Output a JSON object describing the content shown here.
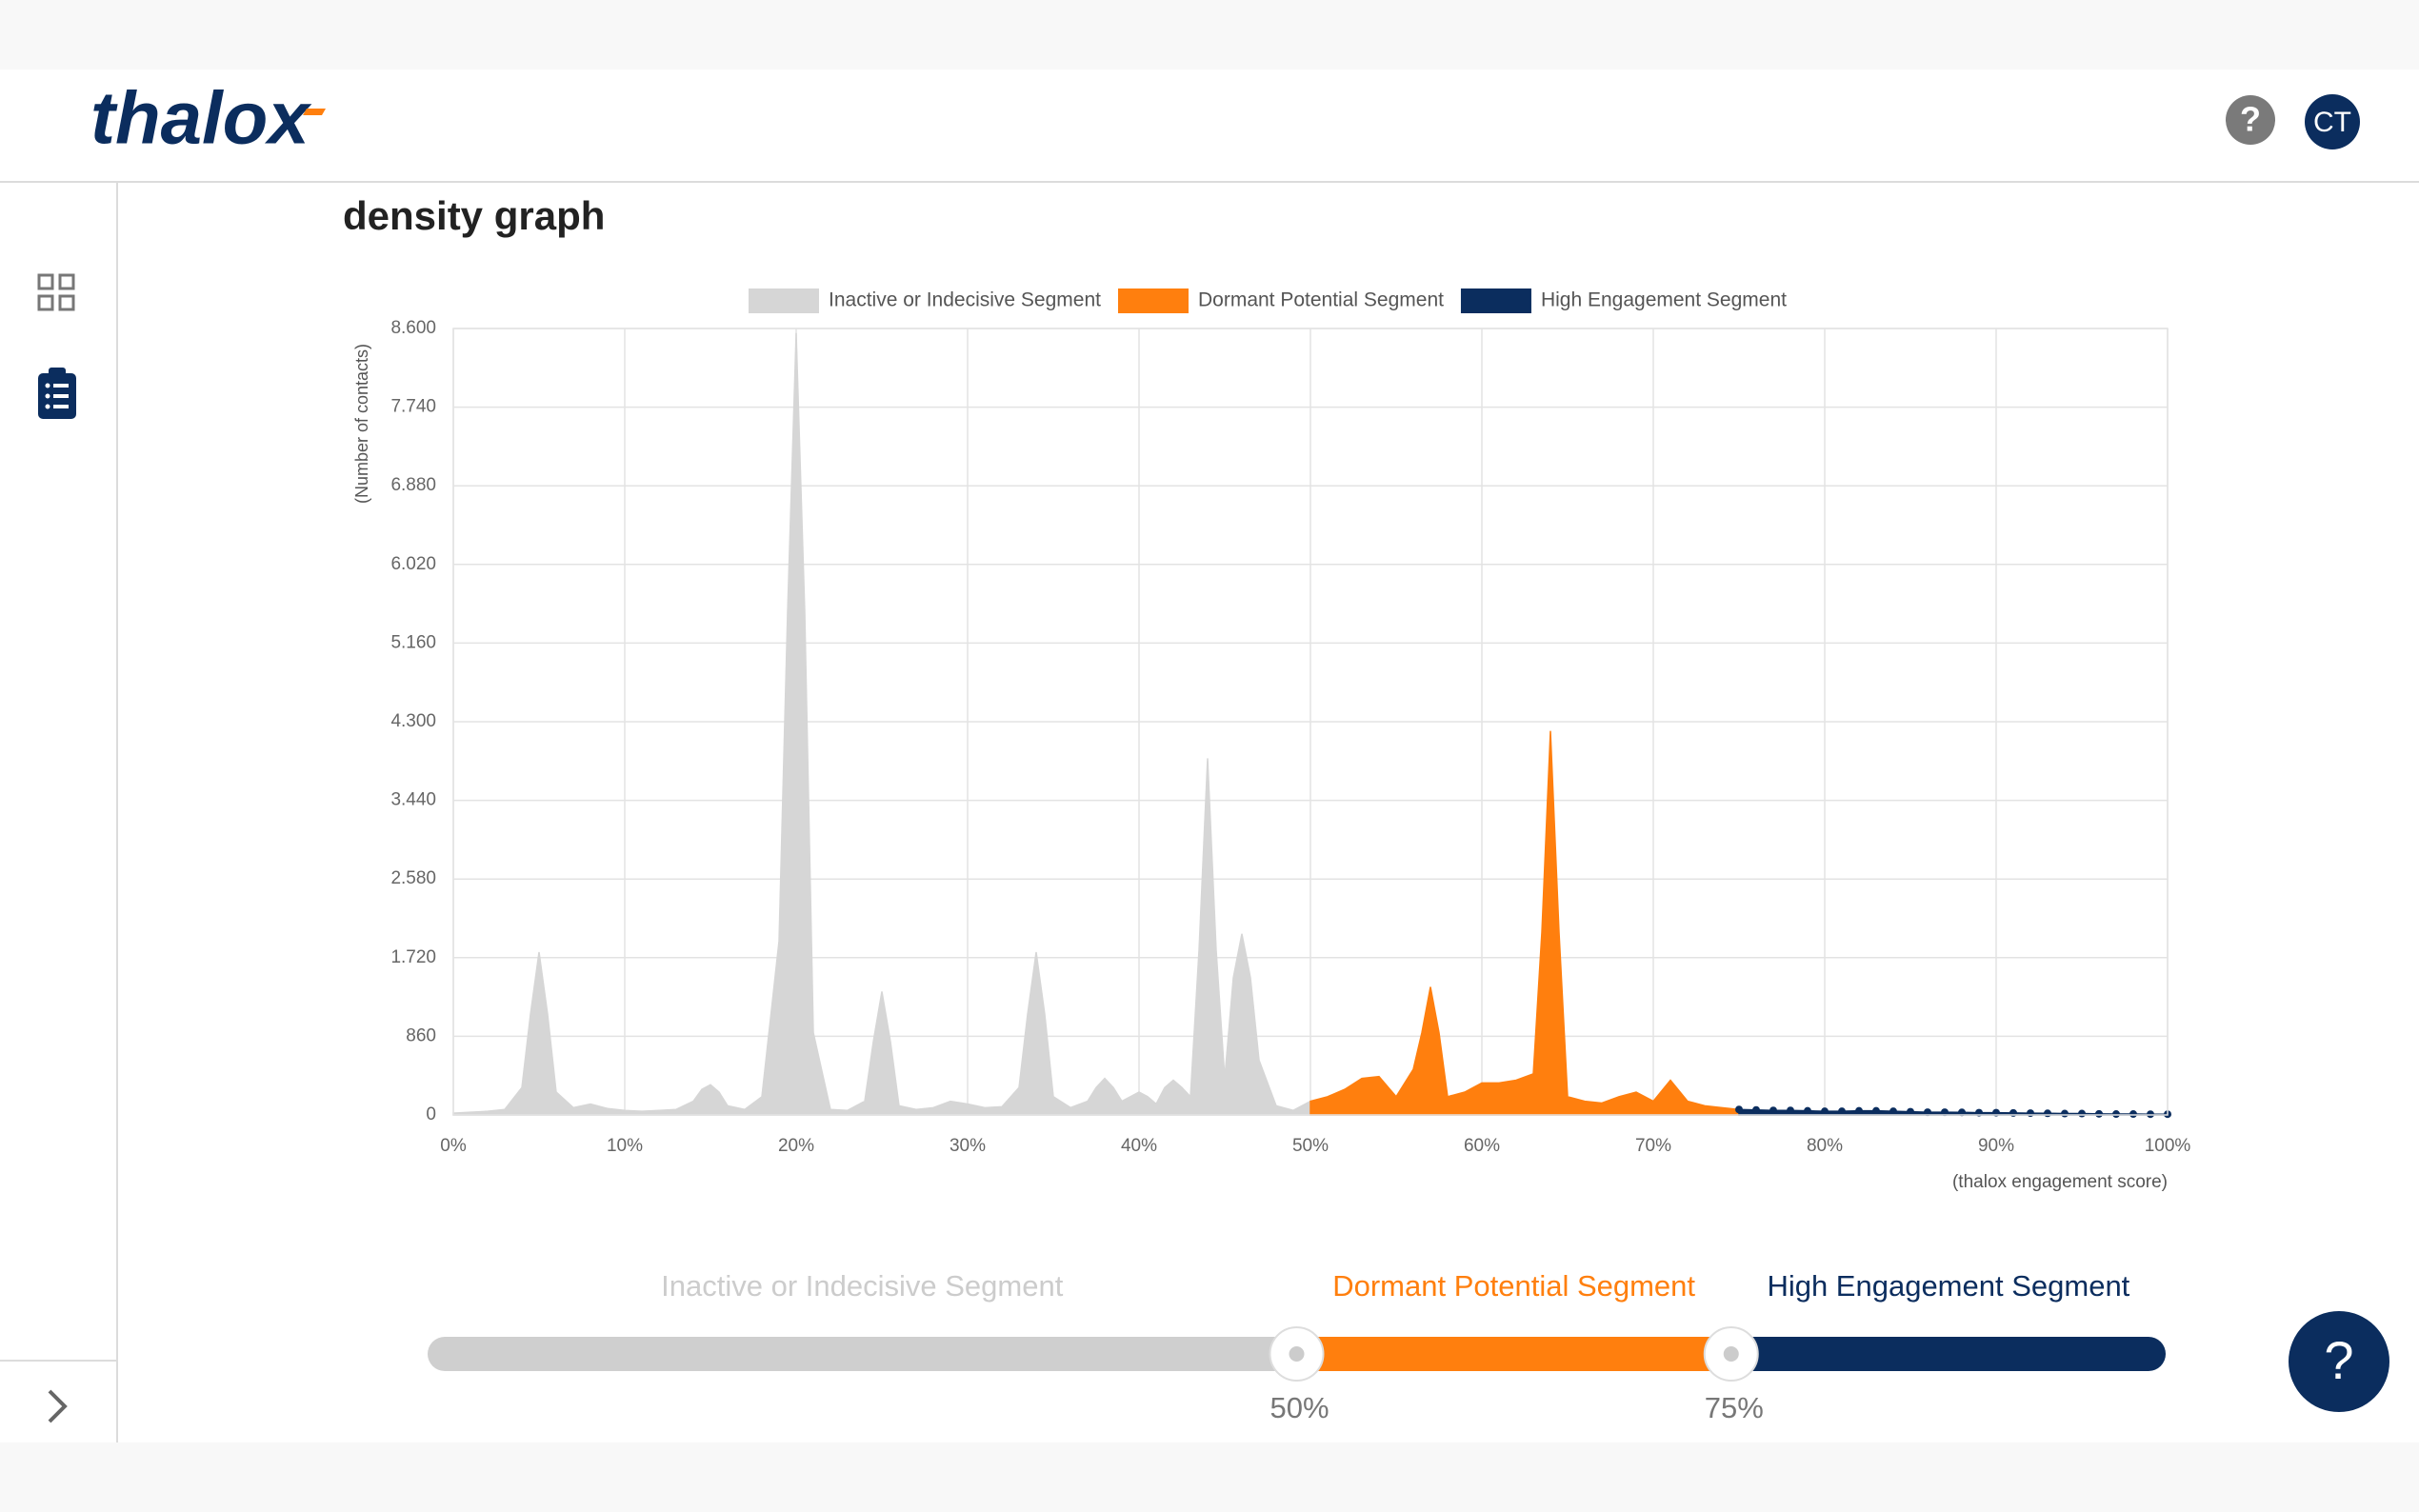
{
  "header": {
    "logo": "thalox",
    "help_icon": "?",
    "avatar": "CT"
  },
  "help_button": "?",
  "chart_data": {
    "type": "area",
    "title": "density graph",
    "y_label": "(Number of contacts)",
    "x_label": "(thalox engagement score)",
    "xlim": [
      0,
      100
    ],
    "ylim": [
      0,
      8600
    ],
    "xticks": [
      {
        "value": 0,
        "label": "0%"
      },
      {
        "value": 10,
        "label": "10%"
      },
      {
        "value": 20,
        "label": "20%"
      },
      {
        "value": 30,
        "label": "30%"
      },
      {
        "value": 40,
        "label": "40%"
      },
      {
        "value": 50,
        "label": "50%"
      },
      {
        "value": 60,
        "label": "60%"
      },
      {
        "value": 70,
        "label": "70%"
      },
      {
        "value": 80,
        "label": "80%"
      },
      {
        "value": 90,
        "label": "90%"
      },
      {
        "value": 100,
        "label": "100%"
      }
    ],
    "yticks": [
      0,
      {
        "value": 860,
        "label": "860"
      },
      {
        "value": 1720,
        "label": "1.720"
      },
      {
        "value": 2580,
        "label": "2.580"
      },
      {
        "value": 3440,
        "label": "3.440"
      },
      {
        "value": 4300,
        "label": "4.300"
      },
      {
        "value": 5160,
        "label": "5.160"
      },
      {
        "value": 6020,
        "label": "6.020"
      },
      {
        "value": 6880,
        "label": "6.880"
      },
      {
        "value": 7740,
        "label": "7.740"
      },
      {
        "value": 8600,
        "label": "8.600"
      }
    ],
    "grid": true,
    "legend": "top",
    "series": [
      {
        "name": "Inactive or Indecisive Segment",
        "color": "#d6d6d6",
        "markers": false,
        "x": [
          0,
          1,
          2,
          3,
          4,
          4.5,
          5,
          5.5,
          6,
          7,
          8,
          9,
          10,
          11,
          12,
          13,
          14,
          14.5,
          15,
          15.5,
          16,
          17,
          18,
          19,
          19.5,
          20,
          20.5,
          21,
          22,
          23,
          24,
          24.5,
          25,
          25.5,
          26,
          27,
          28,
          29,
          30,
          31,
          32,
          33,
          33.5,
          34,
          34.5,
          35,
          36,
          37,
          37.5,
          38,
          38.5,
          39,
          39.5,
          40,
          40.5,
          41,
          41.5,
          42,
          42.5,
          43,
          43.5,
          44,
          44.5,
          45,
          45.5,
          46,
          46.5,
          47,
          47.5,
          48,
          49,
          50
        ],
        "values": [
          20,
          30,
          40,
          60,
          300,
          1100,
          1780,
          1100,
          250,
          80,
          120,
          70,
          50,
          40,
          50,
          60,
          150,
          280,
          330,
          250,
          100,
          60,
          200,
          1900,
          5500,
          8550,
          5500,
          900,
          60,
          50,
          150,
          800,
          1350,
          800,
          100,
          60,
          80,
          150,
          120,
          80,
          90,
          300,
          1100,
          1780,
          1100,
          200,
          80,
          150,
          300,
          400,
          300,
          150,
          200,
          250,
          200,
          120,
          300,
          380,
          300,
          200,
          1800,
          3900,
          1800,
          400,
          1500,
          1980,
          1500,
          600,
          350,
          100,
          50,
          150
        ]
      },
      {
        "name": "Dormant Potential Segment",
        "color": "#ff7f0e",
        "markers": false,
        "x": [
          50,
          51,
          52,
          53,
          54,
          55,
          56,
          56.5,
          57,
          57.5,
          58,
          59,
          60,
          61,
          62,
          63,
          63.5,
          64,
          64.5,
          65,
          66,
          67,
          68,
          69,
          70,
          71,
          72,
          73,
          74,
          75
        ],
        "values": [
          150,
          200,
          280,
          400,
          420,
          200,
          500,
          900,
          1400,
          900,
          200,
          250,
          350,
          350,
          380,
          450,
          2000,
          4200,
          2000,
          200,
          150,
          130,
          200,
          250,
          150,
          380,
          150,
          100,
          80,
          60
        ]
      },
      {
        "name": "High Engagement Segment",
        "color": "#0b2d5e",
        "markers": true,
        "x": [
          75,
          76,
          77,
          78,
          79,
          80,
          81,
          82,
          83,
          84,
          85,
          86,
          87,
          88,
          89,
          90,
          91,
          92,
          93,
          94,
          95,
          96,
          97,
          98,
          99,
          100
        ],
        "values": [
          60,
          55,
          50,
          50,
          45,
          40,
          40,
          45,
          45,
          40,
          35,
          30,
          30,
          28,
          25,
          25,
          22,
          20,
          18,
          15,
          15,
          12,
          10,
          10,
          8,
          8
        ]
      }
    ]
  },
  "slider": {
    "range": [
      0,
      100
    ],
    "segments": [
      {
        "label": "Inactive or Indecisive Segment",
        "color": "#cfcfcf",
        "text_color": "#cccccc"
      },
      {
        "label": "Dormant Potential Segment",
        "color": "#ff7f0e",
        "text_color": "#ff7f0e"
      },
      {
        "label": "High Engagement Segment",
        "color": "#0b2d5e",
        "text_color": "#0b2d5e"
      }
    ],
    "thresholds": [
      {
        "value": 50,
        "label": "50%"
      },
      {
        "value": 75,
        "label": "75%"
      }
    ]
  }
}
